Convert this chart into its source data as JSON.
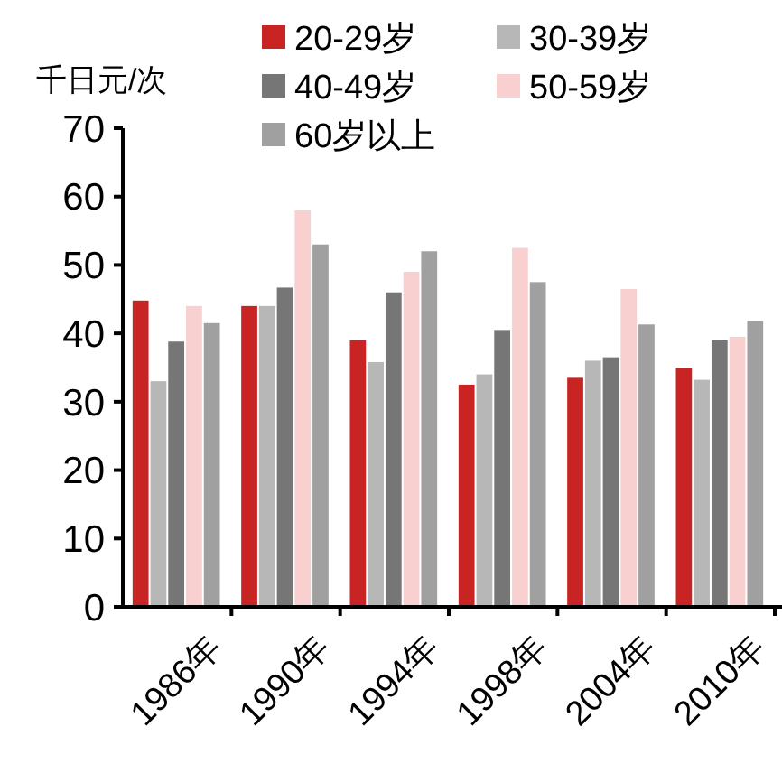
{
  "chart_data": {
    "type": "bar",
    "ylabel": "千日元/次",
    "categories": [
      "1986年",
      "1990年",
      "1994年",
      "1998年",
      "2004年",
      "2010年"
    ],
    "series": [
      {
        "name": "20-29岁",
        "color": "#c82423",
        "values": [
          44.8,
          44,
          39,
          32.5,
          33.5,
          35
        ]
      },
      {
        "name": "30-39岁",
        "color": "#b7b7b7",
        "values": [
          33,
          44,
          35.8,
          34,
          36,
          33.2
        ]
      },
      {
        "name": "40-49岁",
        "color": "#767676",
        "values": [
          38.8,
          46.7,
          46,
          40.5,
          36.5,
          39
        ]
      },
      {
        "name": "50-59岁",
        "color": "#f8d0d0",
        "values": [
          44,
          58,
          49,
          52.5,
          46.5,
          39.5
        ]
      },
      {
        "name": "60岁以上",
        "color": "#a0a0a0",
        "values": [
          41.5,
          53,
          52,
          47.5,
          41.3,
          41.8
        ]
      }
    ],
    "ylim": [
      0,
      70
    ],
    "yticks": [
      0,
      10,
      20,
      30,
      40,
      50,
      60,
      70
    ],
    "grid": false,
    "legend": "top"
  }
}
